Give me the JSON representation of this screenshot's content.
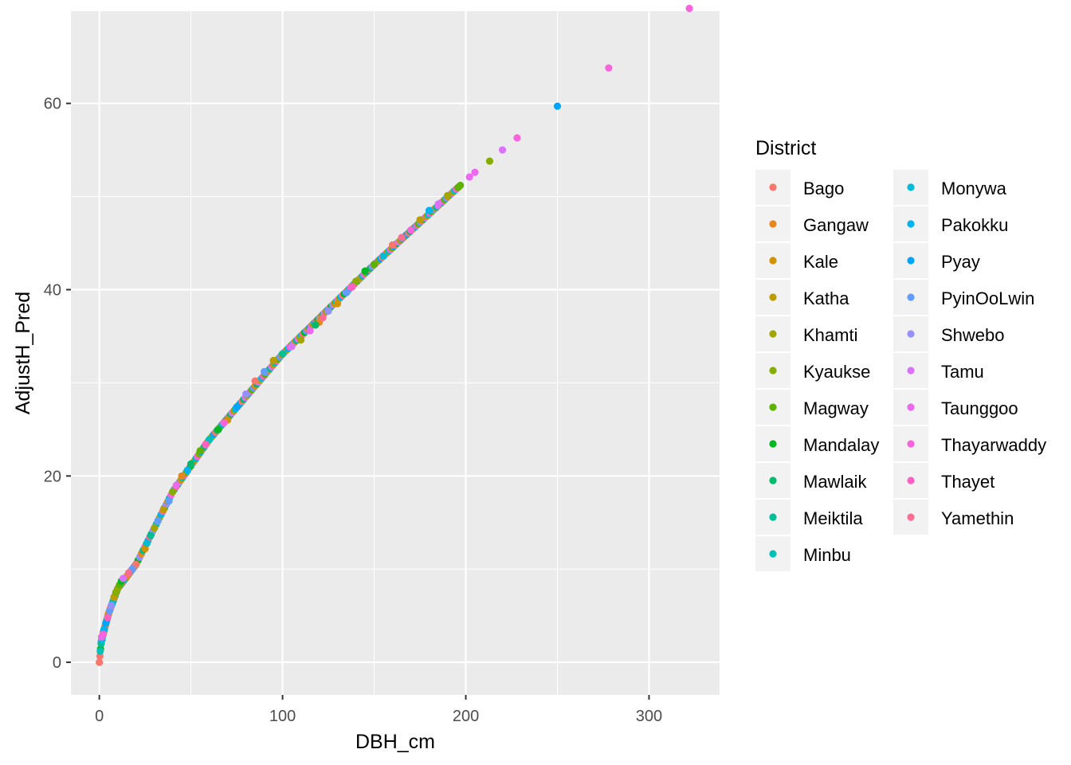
{
  "chart_data": {
    "type": "scatter",
    "title": "",
    "xlabel": "DBH_cm",
    "ylabel": "AdjustH_Pred",
    "xlim": [
      -15.5,
      338.5
    ],
    "ylim": [
      -3.5,
      69.9
    ],
    "x_ticks": [
      0,
      100,
      200,
      300
    ],
    "y_ticks": [
      0,
      20,
      40,
      60
    ],
    "x_tick_labels": [
      "0",
      "100",
      "200",
      "300"
    ],
    "y_tick_labels": [
      "0",
      "20",
      "40",
      "60"
    ],
    "grid": true,
    "background": "#EBEBEB",
    "legend": {
      "title": "District",
      "placement": "right",
      "columns": 2,
      "entries": [
        {
          "name": "Bago",
          "color": "#F8766D"
        },
        {
          "name": "Gangaw",
          "color": "#E7861B"
        },
        {
          "name": "Kale",
          "color": "#D39200"
        },
        {
          "name": "Katha",
          "color": "#BB9D00"
        },
        {
          "name": "Khamti",
          "color": "#A3A500"
        },
        {
          "name": "Kyaukse",
          "color": "#85AD00"
        },
        {
          "name": "Magway",
          "color": "#5BB300"
        },
        {
          "name": "Mandalay",
          "color": "#00B81F"
        },
        {
          "name": "Mawlaik",
          "color": "#00BB6E"
        },
        {
          "name": "Meiktila",
          "color": "#00BE96"
        },
        {
          "name": "Minbu",
          "color": "#00C0B8"
        },
        {
          "name": "Monywa",
          "color": "#00BCD6"
        },
        {
          "name": "Pakokku",
          "color": "#00B4EF"
        },
        {
          "name": "Pyay",
          "color": "#00A5FF"
        },
        {
          "name": "PyinOoLwin",
          "color": "#619CFF"
        },
        {
          "name": "Shwebo",
          "color": "#9590FF"
        },
        {
          "name": "Tamu",
          "color": "#DB72FB"
        },
        {
          "name": "Taunggoo",
          "color": "#EC69EF"
        },
        {
          "name": "Thayarwaddy",
          "color": "#F964DD"
        },
        {
          "name": "Thayet",
          "color": "#FF61C3"
        },
        {
          "name": "Yamethin",
          "color": "#FF6C91"
        }
      ]
    },
    "series": [
      {
        "name": "Bago",
        "points": [
          [
            0,
            0
          ],
          [
            2,
            3.2
          ],
          [
            6,
            5.8
          ],
          [
            20,
            10.5
          ],
          [
            85,
            30.2
          ],
          [
            160,
            44.8
          ]
        ]
      },
      {
        "name": "Gangaw",
        "points": [
          [
            3,
            3.8
          ],
          [
            15,
            9.2
          ],
          [
            45,
            20.0
          ],
          [
            120,
            36.5
          ]
        ]
      },
      {
        "name": "Kale",
        "points": [
          [
            5,
            5.2
          ],
          [
            25,
            12.2
          ],
          [
            70,
            26.0
          ],
          [
            130,
            38.5
          ]
        ]
      },
      {
        "name": "Katha",
        "points": [
          [
            8,
            7.0
          ],
          [
            35,
            16.4
          ],
          [
            95,
            32.4
          ],
          [
            175,
            47.5
          ]
        ]
      },
      {
        "name": "Khamti",
        "points": [
          [
            10,
            7.9
          ],
          [
            30,
            14.4
          ],
          [
            110,
            34.6
          ],
          [
            190,
            50.1
          ]
        ]
      },
      {
        "name": "Kyaukse",
        "points": [
          [
            9,
            7.5
          ],
          [
            40,
            18.3
          ],
          [
            140,
            40.9
          ],
          [
            213,
            53.8
          ]
        ]
      },
      {
        "name": "Magway",
        "points": [
          [
            11,
            8.3
          ],
          [
            55,
            22.7
          ],
          [
            150,
            42.7
          ],
          [
            197,
            51.2
          ]
        ]
      },
      {
        "name": "Mandalay",
        "points": [
          [
            12,
            8.7
          ],
          [
            65,
            25.0
          ],
          [
            145,
            42.0
          ]
        ]
      },
      {
        "name": "Mawlaik",
        "points": [
          [
            4,
            4.5
          ],
          [
            50,
            21.3
          ],
          [
            118,
            36.2
          ]
        ]
      },
      {
        "name": "Meiktila",
        "points": [
          [
            1,
            2.0
          ],
          [
            28,
            13.6
          ],
          [
            100,
            33.1
          ]
        ]
      },
      {
        "name": "Minbu",
        "points": [
          [
            0.5,
            1.2
          ],
          [
            7,
            6.3
          ],
          [
            60,
            23.9
          ]
        ]
      },
      {
        "name": "Monywa",
        "points": [
          [
            1.5,
            2.4
          ],
          [
            26,
            12.8
          ],
          [
            155,
            43.6
          ]
        ]
      },
      {
        "name": "Pakokku",
        "points": [
          [
            2.5,
            3.5
          ],
          [
            48,
            20.6
          ],
          [
            180,
            48.5
          ]
        ]
      },
      {
        "name": "Pyay",
        "points": [
          [
            3.5,
            4.2
          ],
          [
            75,
            27.4
          ],
          [
            250,
            59.7
          ]
        ]
      },
      {
        "name": "PyinOoLwin",
        "points": [
          [
            5.5,
            5.5
          ],
          [
            18,
            10.0
          ],
          [
            32,
            15.2
          ],
          [
            38,
            17.3
          ],
          [
            90,
            31.2
          ],
          [
            135,
            39.7
          ]
        ]
      },
      {
        "name": "Shwebo",
        "points": [
          [
            6.5,
            6.1
          ],
          [
            80,
            28.8
          ],
          [
            125,
            37.7
          ]
        ]
      },
      {
        "name": "Tamu",
        "points": [
          [
            13,
            9.0
          ],
          [
            105,
            33.9
          ],
          [
            185,
            49.2
          ],
          [
            220,
            55.0
          ]
        ]
      },
      {
        "name": "Taunggoo",
        "points": [
          [
            1.2,
            2.7
          ],
          [
            42,
            19.0
          ],
          [
            115,
            35.6
          ],
          [
            202,
            52.1
          ],
          [
            205,
            52.6
          ]
        ]
      },
      {
        "name": "Thayarwaddy",
        "points": [
          [
            2.2,
            3.0
          ],
          [
            68,
            25.7
          ],
          [
            170,
            46.4
          ],
          [
            228,
            56.3
          ],
          [
            278,
            63.8
          ],
          [
            322,
            70.2
          ]
        ]
      },
      {
        "name": "Thayet",
        "points": [
          [
            4.5,
            4.8
          ],
          [
            58,
            23.4
          ],
          [
            138,
            40.3
          ]
        ]
      },
      {
        "name": "Yamethin",
        "points": [
          [
            16,
            9.6
          ],
          [
            122,
            37.0
          ],
          [
            165,
            45.6
          ]
        ]
      }
    ]
  }
}
